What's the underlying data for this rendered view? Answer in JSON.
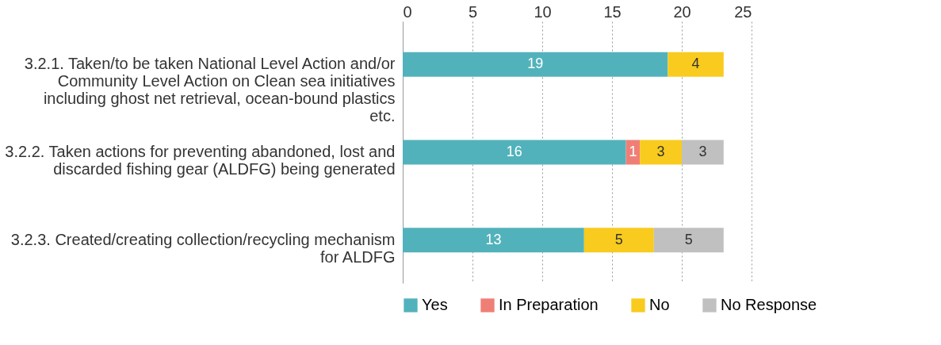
{
  "chart_data": {
    "type": "bar",
    "orientation": "horizontal",
    "stacked": true,
    "data_labels": true,
    "grid": "x",
    "legend": "bottom",
    "categories": [
      "3.2.1. Taken/to be taken National Level Action and/or Community Level Action on Clean sea initiatives including ghost net retrieval, ocean-bound plastics etc.",
      "3.2.2. Taken actions for preventing abandoned, lost and discarded fishing gear (ALDFG) being generated",
      "3.2.3. Created/creating collection/recycling mechanism for ALDFG"
    ],
    "series": [
      {
        "name": "Yes",
        "color": "#52b2bb",
        "values": [
          19,
          16,
          13
        ]
      },
      {
        "name": "In Preparation",
        "color": "#ef7f76",
        "values": [
          null,
          1,
          null
        ]
      },
      {
        "name": "No",
        "color": "#f8cb1e",
        "values": [
          4,
          3,
          5
        ]
      },
      {
        "name": "No Response",
        "color": "#c0c0c0",
        "values": [
          null,
          3,
          5
        ]
      }
    ],
    "xlim": [
      0,
      25
    ],
    "xticks": [
      0,
      5,
      10,
      15,
      20,
      25
    ]
  }
}
